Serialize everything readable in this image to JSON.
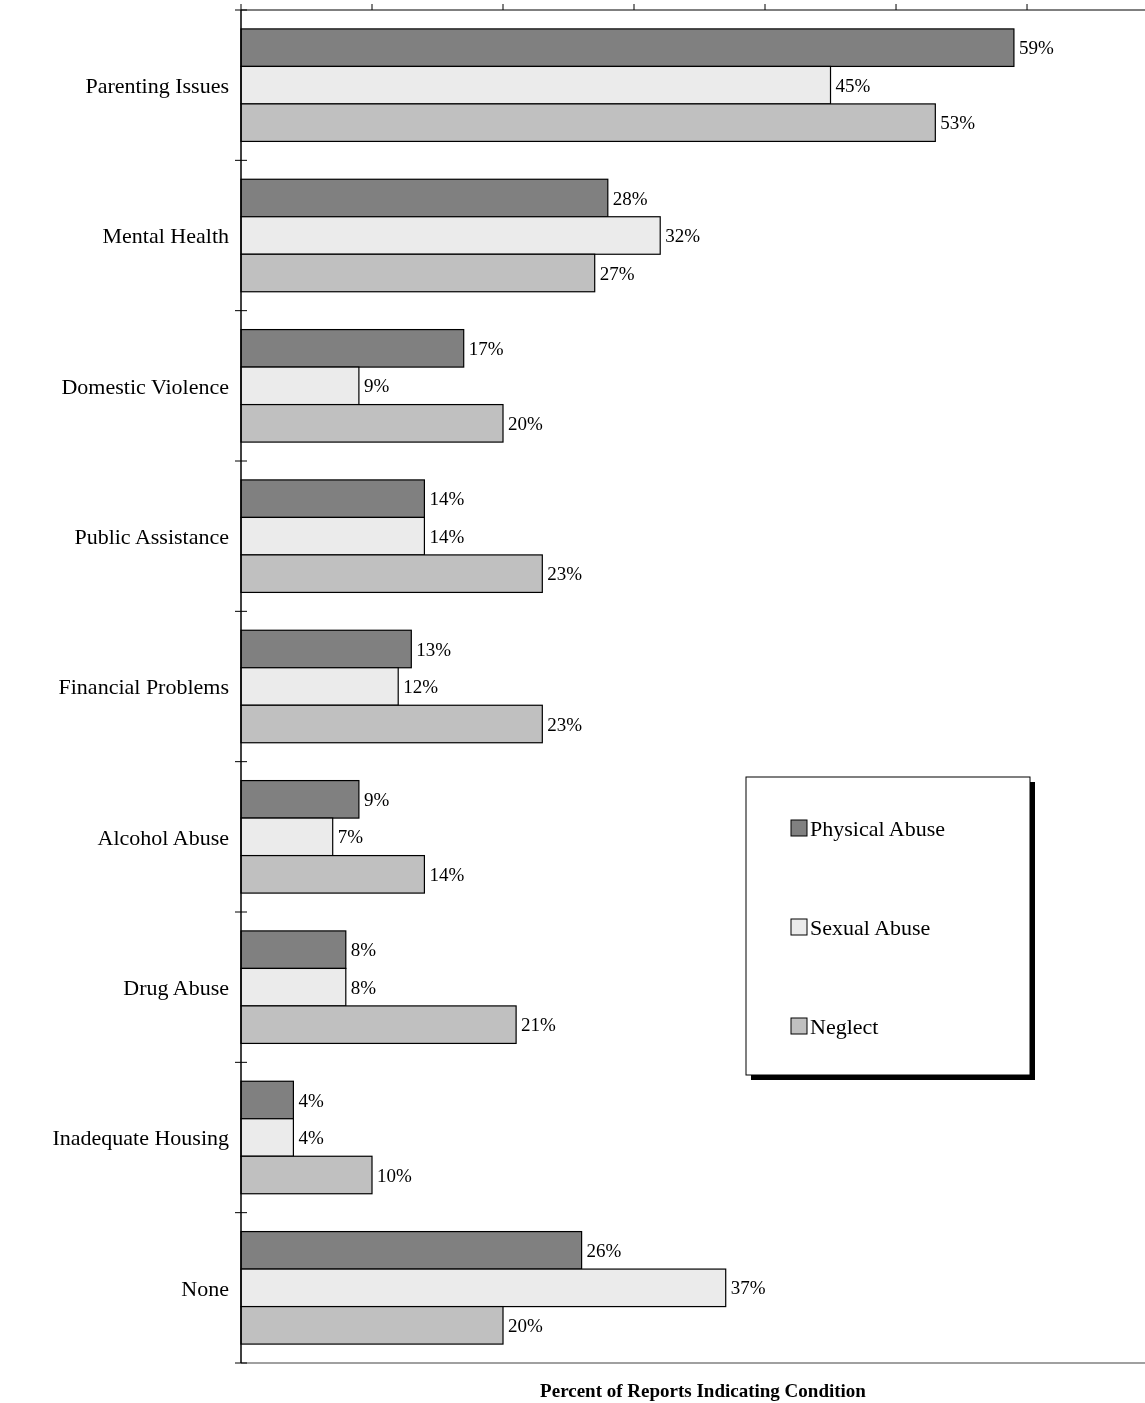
{
  "chart_data": {
    "type": "bar",
    "orientation": "horizontal",
    "xlabel": "Percent of Reports Indicating Condition",
    "categories": [
      "Parenting Issues",
      "Mental Health",
      "Domestic Violence",
      "Public Assistance",
      "Financial Problems",
      "Alcohol Abuse",
      "Drug Abuse",
      "Inadequate Housing",
      "None"
    ],
    "series": [
      {
        "name": "Physical Abuse",
        "color": "#808080",
        "values": [
          59,
          28,
          17,
          14,
          13,
          9,
          8,
          4,
          26
        ],
        "value_labels": [
          "59%",
          "28%",
          "17%",
          "14%",
          "13%",
          "9%",
          "8%",
          "4%",
          "26%"
        ]
      },
      {
        "name": "Sexual Abuse",
        "color": "#ebebeb",
        "values": [
          45,
          32,
          9,
          14,
          12,
          7,
          8,
          4,
          37
        ],
        "value_labels": [
          "45%",
          "32%",
          "9%",
          "14%",
          "12%",
          "7%",
          "8%",
          "4%",
          "37%"
        ]
      },
      {
        "name": "Neglect",
        "color": "#c0c0c0",
        "values": [
          53,
          27,
          20,
          23,
          23,
          14,
          21,
          10,
          20
        ],
        "value_labels": [
          "53%",
          "27%",
          "20%",
          "23%",
          "23%",
          "14%",
          "21%",
          "10%",
          "20%"
        ]
      }
    ],
    "tick_labels": "y",
    "legend": "right"
  }
}
